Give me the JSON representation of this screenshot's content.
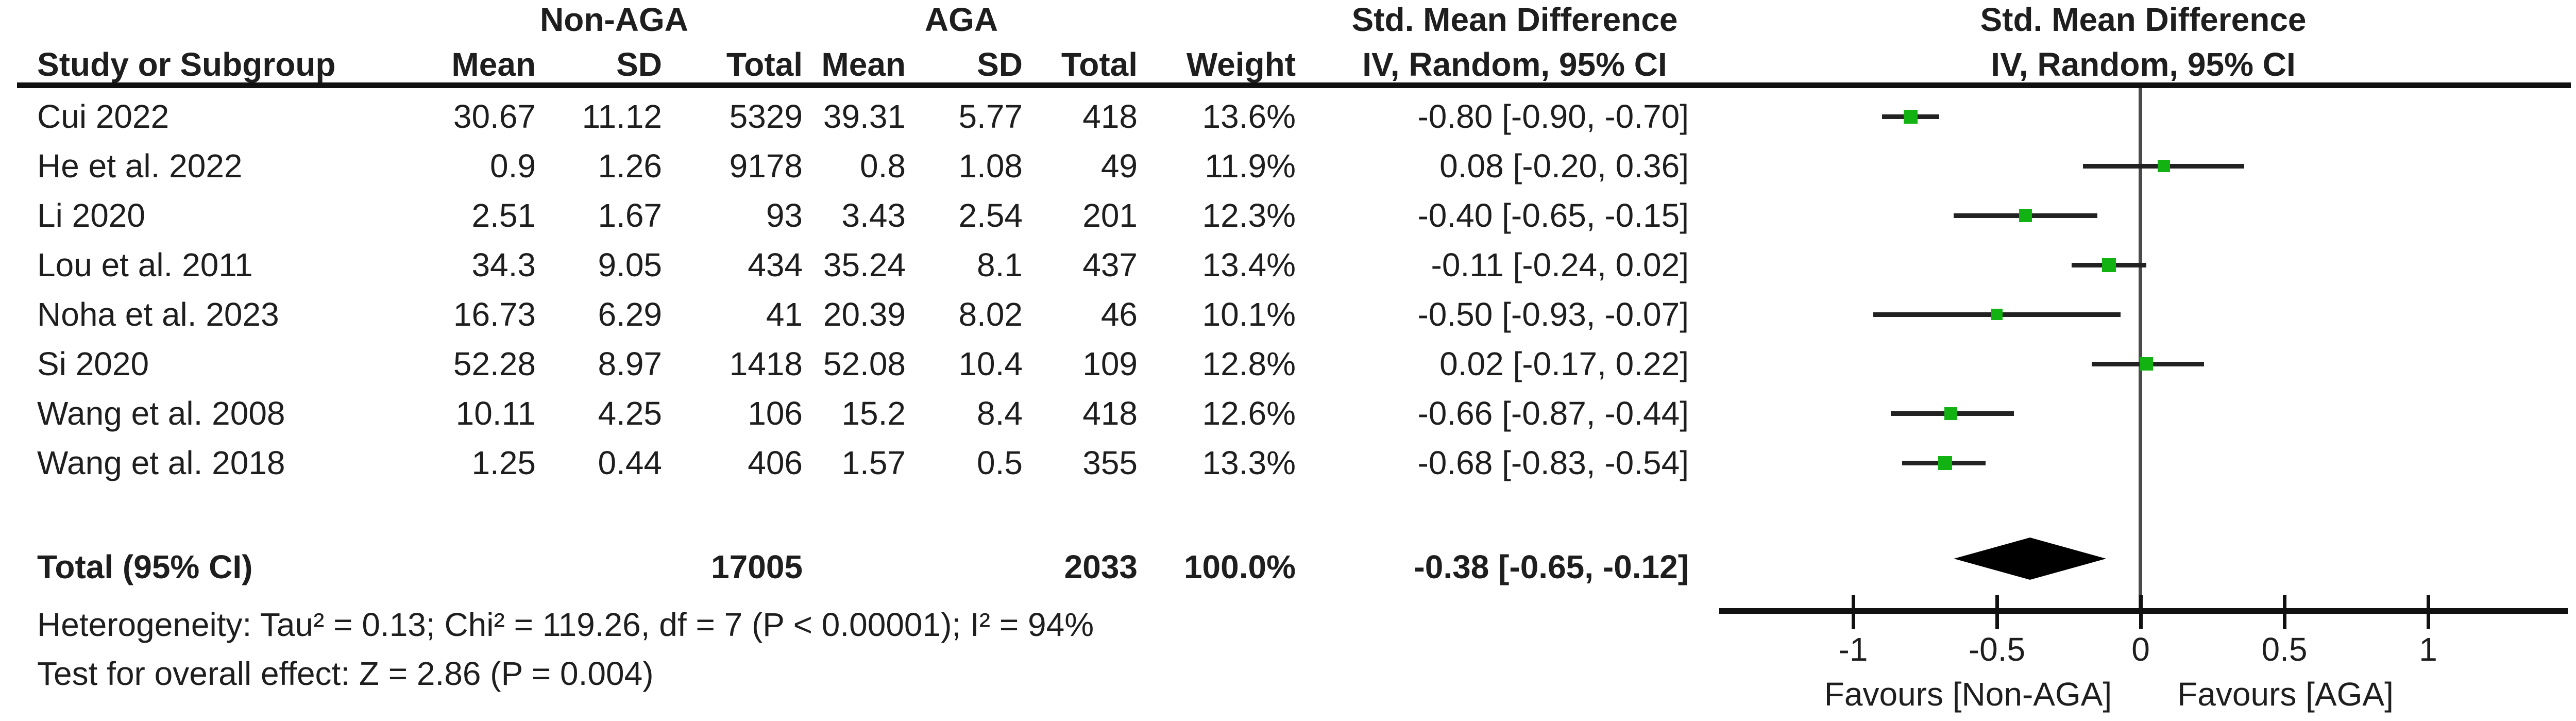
{
  "header": {
    "group_left": "Non-AGA",
    "group_right": "AGA",
    "smd_title": "Std. Mean Difference",
    "smd_subtitle": "IV, Random, 95% CI",
    "plot_title": "Std. Mean Difference",
    "plot_subtitle": "IV, Random, 95% CI",
    "col_study": "Study or Subgroup",
    "col_mean": "Mean",
    "col_sd": "SD",
    "col_total": "Total",
    "col_weight": "Weight"
  },
  "rows": [
    {
      "study": "Cui 2022",
      "mean1": "30.67",
      "sd1": "11.12",
      "total1": "5329",
      "mean2": "39.31",
      "sd2": "5.77",
      "total2": "418",
      "weight": "13.6%",
      "ci_text": "-0.80 [-0.90, -0.70]"
    },
    {
      "study": "He et al. 2022",
      "mean1": "0.9",
      "sd1": "1.26",
      "total1": "9178",
      "mean2": "0.8",
      "sd2": "1.08",
      "total2": "49",
      "weight": "11.9%",
      "ci_text": "0.08 [-0.20, 0.36]"
    },
    {
      "study": "Li 2020",
      "mean1": "2.51",
      "sd1": "1.67",
      "total1": "93",
      "mean2": "3.43",
      "sd2": "2.54",
      "total2": "201",
      "weight": "12.3%",
      "ci_text": "-0.40 [-0.65, -0.15]"
    },
    {
      "study": "Lou et al. 2011",
      "mean1": "34.3",
      "sd1": "9.05",
      "total1": "434",
      "mean2": "35.24",
      "sd2": "8.1",
      "total2": "437",
      "weight": "13.4%",
      "ci_text": "-0.11 [-0.24, 0.02]"
    },
    {
      "study": "Noha et al. 2023",
      "mean1": "16.73",
      "sd1": "6.29",
      "total1": "41",
      "mean2": "20.39",
      "sd2": "8.02",
      "total2": "46",
      "weight": "10.1%",
      "ci_text": "-0.50 [-0.93, -0.07]"
    },
    {
      "study": "Si 2020",
      "mean1": "52.28",
      "sd1": "8.97",
      "total1": "1418",
      "mean2": "52.08",
      "sd2": "10.4",
      "total2": "109",
      "weight": "12.8%",
      "ci_text": "0.02 [-0.17, 0.22]"
    },
    {
      "study": "Wang et al. 2008",
      "mean1": "10.11",
      "sd1": "4.25",
      "total1": "106",
      "mean2": "15.2",
      "sd2": "8.4",
      "total2": "418",
      "weight": "12.6%",
      "ci_text": "-0.66 [-0.87, -0.44]"
    },
    {
      "study": "Wang et al. 2018",
      "mean1": "1.25",
      "sd1": "0.44",
      "total1": "406",
      "mean2": "1.57",
      "sd2": "0.5",
      "total2": "355",
      "weight": "13.3%",
      "ci_text": "-0.68 [-0.83, -0.54]"
    }
  ],
  "total_row": {
    "label": "Total (95% CI)",
    "total1": "17005",
    "total2": "2033",
    "weight": "100.0%",
    "ci_text": "-0.38 [-0.65, -0.12]"
  },
  "footnotes": {
    "heterogeneity": "Heterogeneity: Tau² = 0.13; Chi² = 119.26, df = 7 (P < 0.00001); I² = 94%",
    "overall_effect": "Test for overall effect: Z = 2.86 (P = 0.004)"
  },
  "chart_data": {
    "type": "forest",
    "effect_measure": "Std. Mean Difference",
    "model": "IV, Random, 95% CI",
    "studies": [
      {
        "name": "Cui 2022",
        "effect": -0.8,
        "ci_low": -0.9,
        "ci_high": -0.7,
        "weight_pct": 13.6
      },
      {
        "name": "He et al. 2022",
        "effect": 0.08,
        "ci_low": -0.2,
        "ci_high": 0.36,
        "weight_pct": 11.9
      },
      {
        "name": "Li 2020",
        "effect": -0.4,
        "ci_low": -0.65,
        "ci_high": -0.15,
        "weight_pct": 12.3
      },
      {
        "name": "Lou et al. 2011",
        "effect": -0.11,
        "ci_low": -0.24,
        "ci_high": 0.02,
        "weight_pct": 13.4
      },
      {
        "name": "Noha et al. 2023",
        "effect": -0.5,
        "ci_low": -0.93,
        "ci_high": -0.07,
        "weight_pct": 10.1
      },
      {
        "name": "Si 2020",
        "effect": 0.02,
        "ci_low": -0.17,
        "ci_high": 0.22,
        "weight_pct": 12.8
      },
      {
        "name": "Wang et al. 2008",
        "effect": -0.66,
        "ci_low": -0.87,
        "ci_high": -0.44,
        "weight_pct": 12.6
      },
      {
        "name": "Wang et al. 2018",
        "effect": -0.68,
        "ci_low": -0.83,
        "ci_high": -0.54,
        "weight_pct": 13.3
      }
    ],
    "overall": {
      "effect": -0.38,
      "ci_low": -0.65,
      "ci_high": -0.12
    },
    "axis": {
      "tick_values": [
        -1,
        -0.5,
        0,
        0.5,
        1
      ],
      "tick_labels": [
        "-1",
        "-0.5",
        "0",
        "0.5",
        "1"
      ],
      "xlim": [
        -1.47,
        1.48
      ],
      "zero_line": 0
    },
    "favours_left": "Favours [Non-AGA]",
    "favours_right": "Favours [AGA]",
    "marker_color": "#12b212",
    "ci_color": "#222222",
    "diamond_color": "#000000"
  }
}
